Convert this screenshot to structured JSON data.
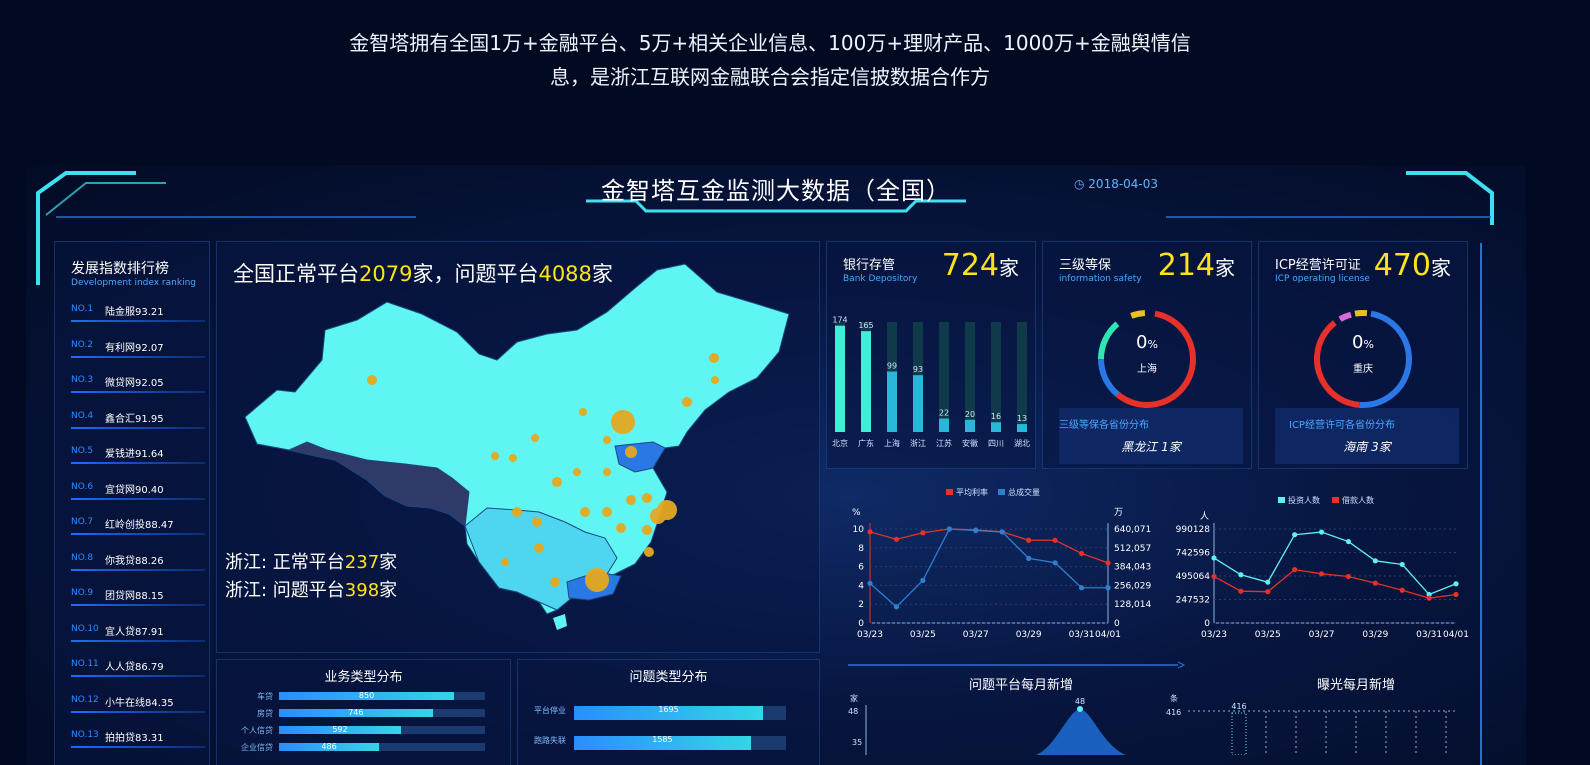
{
  "intro": {
    "line1": "金智塔拥有全国1万+金融平台、5万+相关企业信息、100万+理财产品、1000万+金融舆情信",
    "line2": "息，是浙江互联网金融联合会指定信披数据合作方"
  },
  "header": {
    "title": "金智塔互金监测大数据（全国）",
    "date": "2018-04-03",
    "clock_icon": "clock-icon"
  },
  "ranking": {
    "title": "发展指数排行榜",
    "subtitle": "Development index ranking",
    "items": [
      {
        "no": "NO.1",
        "name": "陆金服93.21"
      },
      {
        "no": "NO.2",
        "name": "有利网92.07"
      },
      {
        "no": "NO.3",
        "name": "微贷网92.05"
      },
      {
        "no": "NO.4",
        "name": "鑫合汇91.95"
      },
      {
        "no": "NO.5",
        "name": "爱钱进91.64"
      },
      {
        "no": "NO.6",
        "name": "宜贷网90.40"
      },
      {
        "no": "NO.7",
        "name": "红岭创投88.47"
      },
      {
        "no": "NO.8",
        "name": "你我贷88.26"
      },
      {
        "no": "NO.9",
        "name": "团贷网88.15"
      },
      {
        "no": "NO.10",
        "name": "宜人贷87.91"
      },
      {
        "no": "NO.11",
        "name": "人人贷86.79"
      },
      {
        "no": "NO.12",
        "name": "小牛在线84.35"
      },
      {
        "no": "NO.13",
        "name": "拍拍贷83.31"
      }
    ]
  },
  "map": {
    "h_pre": "全国正常平台",
    "normal": "2079",
    "h_mid": "家，问题平台",
    "problem": "4088",
    "h_post": "家",
    "zj_normal_pre": "浙江: 正常平台",
    "zj_normal": "237",
    "zj_post": "家",
    "zj_problem_pre": "浙江: 问题平台",
    "zj_problem": "398"
  },
  "bank": {
    "title": "银行存管",
    "subtitle": "Bank Depository",
    "value": "724",
    "unit": "家",
    "chart_data": {
      "type": "bar",
      "categories": [
        "北京",
        "广东",
        "上海",
        "浙江",
        "江苏",
        "安徽",
        "四川",
        "湖北"
      ],
      "values": [
        174,
        165,
        99,
        93,
        22,
        20,
        16,
        13
      ]
    }
  },
  "safety": {
    "title": "三级等保",
    "subtitle": "information safety",
    "value": "214",
    "unit": "家",
    "pct": "0",
    "pct_unit": "%",
    "center_label": "上海",
    "dist_title": "三级等保各省份分布",
    "dist_value": "黑龙江 1家"
  },
  "icp": {
    "title": "ICP经营许可证",
    "subtitle": "ICP operating license",
    "value": "470",
    "unit": "家",
    "pct": "0",
    "pct_unit": "%",
    "center_label": "重庆",
    "dist_title": "ICP经营许可各省份分布",
    "dist_value": "海南 3家"
  },
  "rate_chart": {
    "chart_data": {
      "type": "line",
      "x": [
        "03/23",
        "03/24",
        "03/25",
        "03/26",
        "03/27",
        "03/28",
        "03/29",
        "03/30",
        "03/31",
        "04/01"
      ],
      "series": [
        {
          "name": "平均利率",
          "axis": "left",
          "color": "#e8302a",
          "values": [
            9.7,
            8.9,
            9.6,
            10,
            9.9,
            9.7,
            8.8,
            8.8,
            7.4,
            6.4
          ]
        },
        {
          "name": "总成交量",
          "axis": "right",
          "color": "#2f7fd0",
          "values": [
            270000,
            110000,
            290000,
            640000,
            630000,
            620000,
            440000,
            410000,
            240000,
            240000
          ]
        }
      ],
      "ylabel_left": "%",
      "ylabel_right": "万",
      "left_ticks": [
        "10",
        "8",
        "6",
        "4",
        "2",
        "0"
      ],
      "right_ticks": [
        "640,071",
        "512,057",
        "384,043",
        "256,029",
        "128,014",
        "0"
      ],
      "x_ticks": [
        "03/23",
        "03/25",
        "03/27",
        "03/29",
        "03/31",
        "04/01"
      ],
      "ylim_left": [
        0,
        10
      ],
      "ylim_right": [
        0,
        640071
      ]
    }
  },
  "people_chart": {
    "chart_data": {
      "type": "line",
      "x": [
        "03/23",
        "03/24",
        "03/25",
        "03/26",
        "03/27",
        "03/28",
        "03/29",
        "03/30",
        "03/31",
        "04/01"
      ],
      "series": [
        {
          "name": "投资人数",
          "color": "#5ff0f0",
          "values": [
            685000,
            508000,
            430000,
            930000,
            958000,
            858000,
            655000,
            617000,
            300000,
            413000
          ]
        },
        {
          "name": "借款人数",
          "color": "#e8302a",
          "values": [
            490000,
            335000,
            330000,
            562000,
            518000,
            490000,
            420000,
            345000,
            262000,
            300000
          ]
        }
      ],
      "ylabel": "人",
      "y_ticks": [
        "990128",
        "742596",
        "495064",
        "247532",
        "0"
      ],
      "x_ticks": [
        "03/23",
        "03/25",
        "03/27",
        "03/29",
        "03/31",
        "04/01"
      ],
      "ylim": [
        0,
        990128
      ]
    }
  },
  "business": {
    "title": "业务类型分布",
    "chart_data": {
      "type": "bar",
      "categories": [
        "车贷",
        "房贷",
        "个人信贷",
        "企业信贷"
      ],
      "values": [
        850,
        746,
        592,
        486
      ]
    }
  },
  "problems": {
    "title": "问题类型分布",
    "chart_data": {
      "type": "bar",
      "categories": [
        "平台停业",
        "跑路失联"
      ],
      "values": [
        1695,
        1585
      ]
    }
  },
  "monthly_problem": {
    "title": "问题平台每月新增",
    "unit": "家",
    "ticks": [
      "48",
      "35"
    ],
    "peak": "48"
  },
  "monthly_exposure": {
    "title": "曝光每月新增",
    "unit": "条",
    "ticks": [
      "416"
    ],
    "peak": "416"
  }
}
